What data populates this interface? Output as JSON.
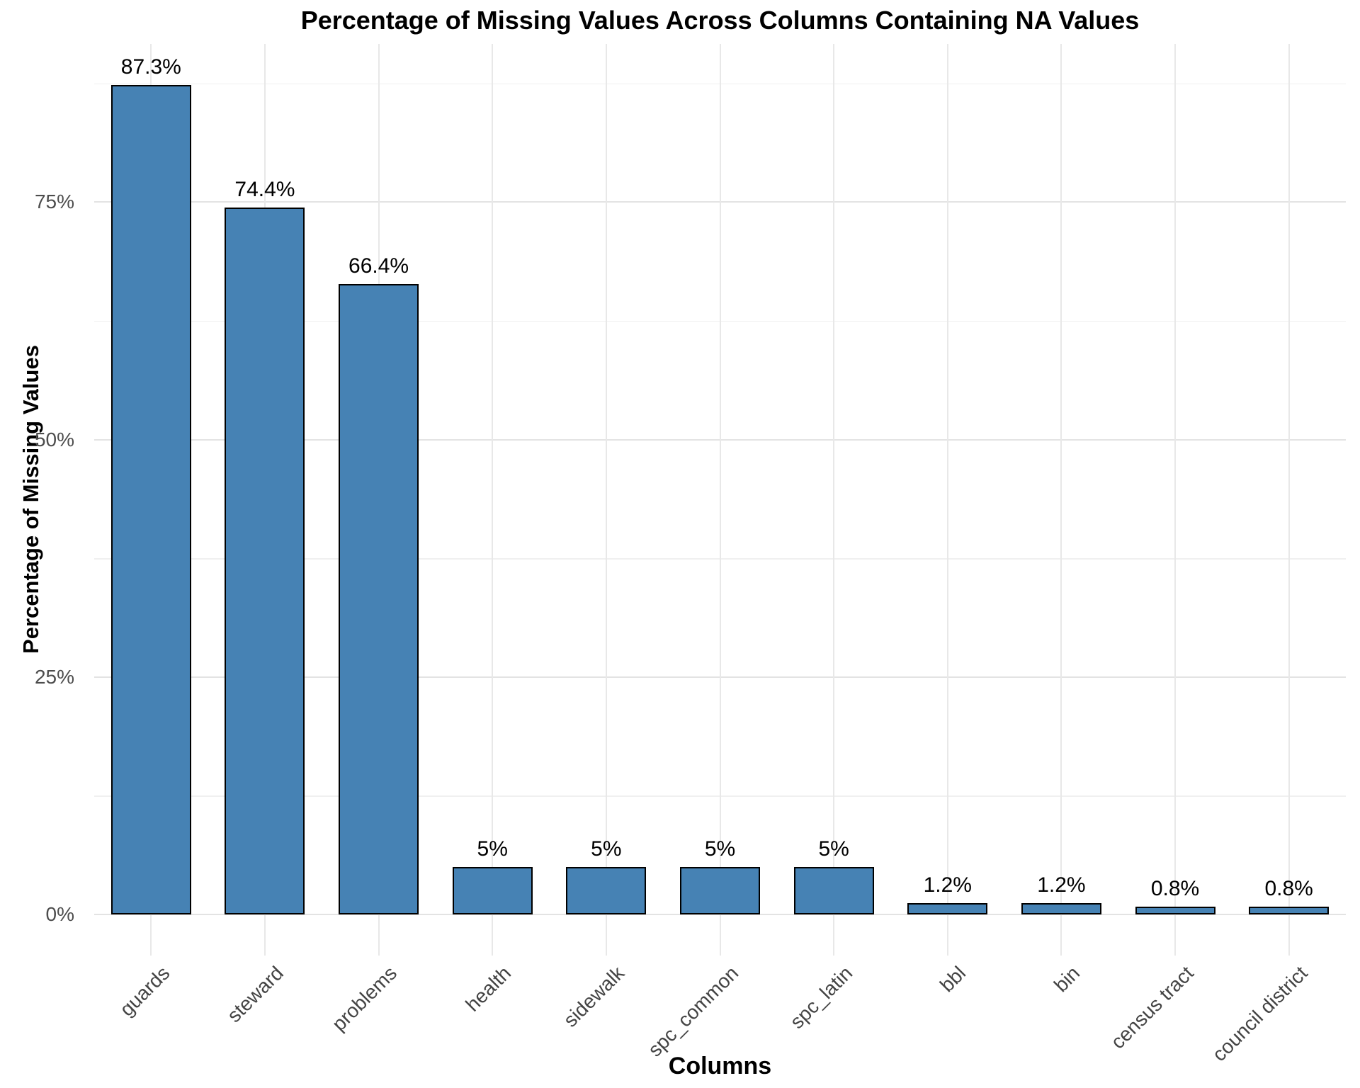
{
  "chart_data": {
    "type": "bar",
    "title": "Percentage of Missing Values Across Columns Containing NA Values",
    "xlabel": "Columns",
    "ylabel": "Percentage of Missing Values",
    "categories": [
      "guards",
      "steward",
      "problems",
      "health",
      "sidewalk",
      "spc_common",
      "spc_latin",
      "bbl",
      "bin",
      "census tract",
      "council district"
    ],
    "values": [
      87.3,
      74.4,
      66.4,
      5,
      5,
      5,
      5,
      1.2,
      1.2,
      0.8,
      0.8
    ],
    "bar_labels": [
      "87.3%",
      "74.4%",
      "66.4%",
      "5%",
      "5%",
      "5%",
      "5%",
      "1.2%",
      "1.2%",
      "0.8%",
      "0.8%"
    ],
    "y_tick_labels": [
      "0%",
      "25%",
      "50%",
      "75%"
    ],
    "y_tick_values": [
      0,
      25,
      50,
      75
    ],
    "y_minor_gridline_values": [
      12.5,
      37.5,
      62.5,
      87.5
    ],
    "ylim": [
      -4.4,
      91.7
    ],
    "grid": "major and minor horizontal, major vertical at category centers",
    "legend": "none",
    "bar_fill_color": "#4682B4",
    "bar_border_color": "#000000",
    "major_grid_color": "#e3e3e3",
    "minor_grid_color": "#f0f0f0",
    "axis_text_color": "#4d4d4d",
    "title_color": "#000000",
    "background_color": "#ffffff"
  }
}
